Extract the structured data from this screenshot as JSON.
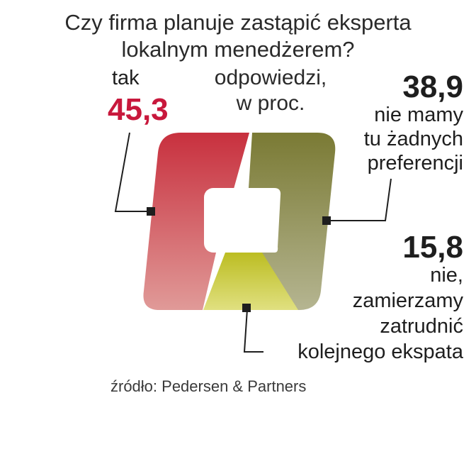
{
  "chart_data": {
    "type": "pie",
    "title": "Czy firma planuje zastąpić eksperta",
    "title_line2": "lokalnym menedżerem?",
    "subtitle": "odpowiedzi,",
    "subtitle_line2": "w proc.",
    "source": "źródło: Pedersen & Partners",
    "slices": [
      {
        "label": "tak",
        "value": 45.3,
        "value_text": "45,3",
        "color": "#c9303e"
      },
      {
        "label": "nie mamy tu żadnych preferencji",
        "label_lines": [
          "nie mamy",
          "tu żadnych",
          "preferencji"
        ],
        "value": 38.9,
        "value_text": "38,9",
        "color": "#7c7d36"
      },
      {
        "label": "nie, zamierzamy zatrudnić kolejnego ekspata",
        "label_lines": [
          "nie,",
          "zamierzamy",
          "zatrudnić",
          "kolejnego ekspata"
        ],
        "value": 15.8,
        "value_text": "15,8",
        "color": "#c4c52b"
      }
    ]
  }
}
